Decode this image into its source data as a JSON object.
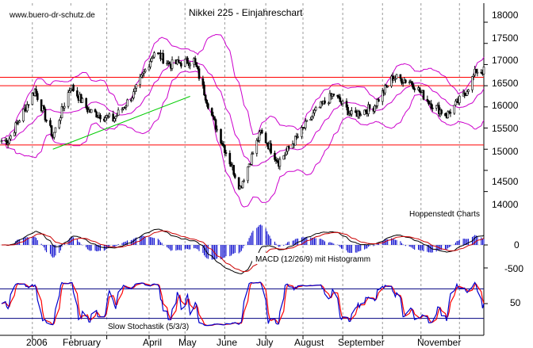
{
  "chart_data": [
    {
      "type": "candlestick",
      "title": "Nikkei 225 - Einjahreschart",
      "watermark": "www.buero-dr-schutz.de",
      "source_note": "Hoppenstedt Charts",
      "ylim": [
        13600,
        18300
      ],
      "yticks": [
        "18000",
        "17500",
        "17000",
        "16500",
        "16000",
        "15500",
        "15000",
        "14500",
        "14000"
      ],
      "months": [
        "2006",
        "February",
        "April",
        "May",
        "June",
        "July",
        "August",
        "September",
        "November"
      ],
      "colors": {
        "price": "#000000",
        "bands": "#cc00cc",
        "levels": "#ff0000",
        "trend": "#00cc00"
      },
      "horizontal_levels": [
        16700,
        16500,
        15100
      ],
      "trendline": {
        "start": [
          "2006-01-18",
          15000
        ],
        "end": [
          "2006-05-05",
          16250
        ]
      },
      "bollinger_band": "upper/middle/lower",
      "close_approx": [
        {
          "x": "2005-12-14",
          "y": 15200
        },
        {
          "x": "2006-01-04",
          "y": 16400
        },
        {
          "x": "2006-01-18",
          "y": 15300
        },
        {
          "x": "2006-02-01",
          "y": 16500
        },
        {
          "x": "2006-02-15",
          "y": 15900
        },
        {
          "x": "2006-03-06",
          "y": 15700
        },
        {
          "x": "2006-03-22",
          "y": 16300
        },
        {
          "x": "2006-04-07",
          "y": 17300
        },
        {
          "x": "2006-04-20",
          "y": 17000
        },
        {
          "x": "2006-05-08",
          "y": 17100
        },
        {
          "x": "2006-05-23",
          "y": 15700
        },
        {
          "x": "2006-06-13",
          "y": 14100
        },
        {
          "x": "2006-06-29",
          "y": 15400
        },
        {
          "x": "2006-07-13",
          "y": 14700
        },
        {
          "x": "2006-07-28",
          "y": 15300
        },
        {
          "x": "2006-08-11",
          "y": 15900
        },
        {
          "x": "2006-08-25",
          "y": 16300
        },
        {
          "x": "2006-09-08",
          "y": 15800
        },
        {
          "x": "2006-09-25",
          "y": 16000
        },
        {
          "x": "2006-10-10",
          "y": 16700
        },
        {
          "x": "2006-10-24",
          "y": 16600
        },
        {
          "x": "2006-11-08",
          "y": 16100
        },
        {
          "x": "2006-11-21",
          "y": 15800
        },
        {
          "x": "2006-12-05",
          "y": 16300
        },
        {
          "x": "2006-12-14",
          "y": 16850
        }
      ]
    },
    {
      "type": "bar",
      "title": "MACD (12/26/9) mit Histogramm",
      "yticks": [
        "0",
        "-500"
      ],
      "colors": {
        "histogram": "#0000cc",
        "macd": "#000000",
        "signal": "#cc0000"
      }
    },
    {
      "type": "line",
      "title": "Slow Stochastik (5/3/3)",
      "yticks": [
        "50"
      ],
      "levels": [
        80,
        20
      ],
      "colors": {
        "k": "#0000cc",
        "d": "#ff0000",
        "levels": "#000080"
      }
    }
  ]
}
